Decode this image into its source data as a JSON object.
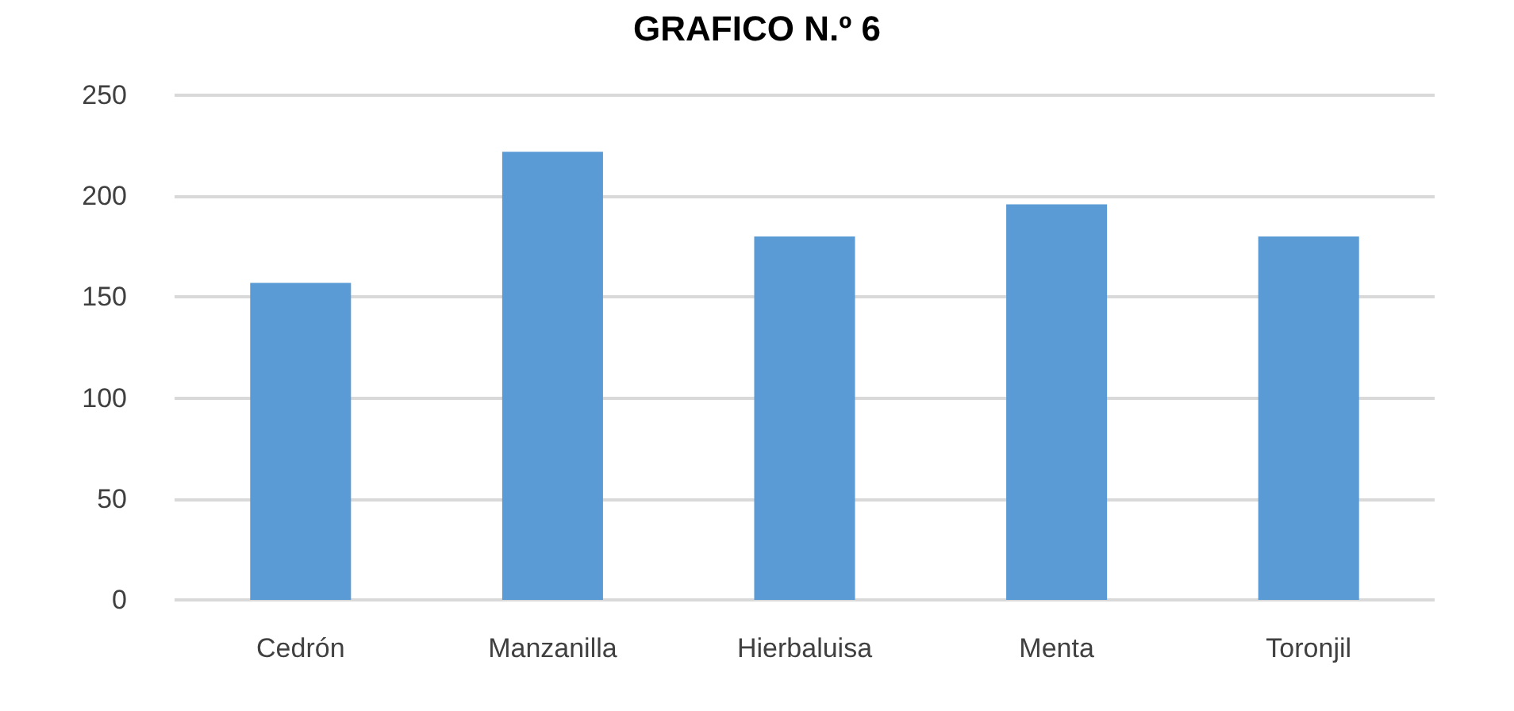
{
  "chart_data": {
    "type": "bar",
    "title": "GRAFICO N.º 6",
    "categories": [
      "Cedrón",
      "Manzanilla",
      "Hierbaluisa",
      "Menta",
      "Toronjil"
    ],
    "values": [
      157,
      222,
      180,
      196,
      180
    ],
    "color": "#5b9bd5",
    "ylim": [
      0,
      250
    ],
    "yticks": [
      0,
      50,
      100,
      150,
      200,
      250
    ],
    "grid": "y"
  }
}
